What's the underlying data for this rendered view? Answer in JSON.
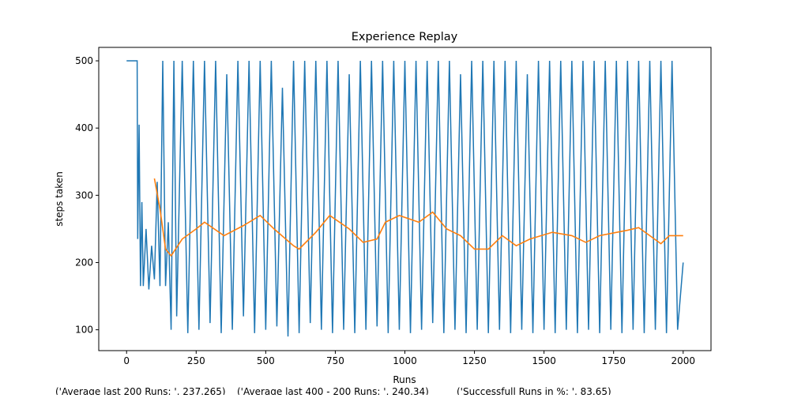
{
  "chart_data": {
    "type": "line",
    "title": "Experience Replay",
    "x_label": "Runs",
    "y_label": "steps taken",
    "xlim": [
      -100,
      2100
    ],
    "ylim": [
      69,
      520
    ],
    "xticks": [
      0,
      250,
      500,
      750,
      1000,
      1250,
      1500,
      1750,
      2000
    ],
    "yticks": [
      100,
      200,
      300,
      400,
      500
    ],
    "grid": false,
    "series": [
      {
        "color": "#1f77b4",
        "x": [
          0,
          38,
          40,
          45,
          50,
          55,
          60,
          70,
          80,
          90,
          100,
          110,
          120,
          130,
          140,
          150,
          160,
          170,
          180,
          200,
          220,
          240,
          260,
          280,
          300,
          320,
          340,
          360,
          380,
          400,
          420,
          440,
          460,
          480,
          500,
          520,
          540,
          560,
          580,
          600,
          620,
          640,
          660,
          680,
          700,
          720,
          740,
          760,
          780,
          800,
          820,
          840,
          860,
          880,
          900,
          920,
          940,
          960,
          980,
          1000,
          1020,
          1040,
          1060,
          1080,
          1100,
          1120,
          1140,
          1160,
          1180,
          1200,
          1220,
          1240,
          1260,
          1280,
          1300,
          1320,
          1340,
          1360,
          1380,
          1400,
          1420,
          1440,
          1460,
          1480,
          1500,
          1520,
          1540,
          1560,
          1580,
          1600,
          1620,
          1640,
          1660,
          1680,
          1700,
          1720,
          1740,
          1760,
          1780,
          1800,
          1820,
          1840,
          1860,
          1880,
          1900,
          1920,
          1940,
          1960,
          1980,
          2000
        ],
        "values": [
          500,
          500,
          235,
          405,
          165,
          290,
          165,
          250,
          160,
          225,
          175,
          320,
          165,
          500,
          165,
          260,
          100,
          500,
          120,
          500,
          95,
          500,
          100,
          500,
          110,
          500,
          95,
          480,
          100,
          500,
          120,
          500,
          95,
          500,
          100,
          500,
          105,
          460,
          90,
          500,
          95,
          500,
          110,
          500,
          100,
          500,
          95,
          500,
          100,
          480,
          95,
          500,
          100,
          500,
          105,
          500,
          95,
          500,
          100,
          500,
          95,
          500,
          100,
          500,
          110,
          500,
          95,
          500,
          100,
          480,
          95,
          500,
          100,
          500,
          95,
          500,
          100,
          500,
          95,
          500,
          100,
          480,
          95,
          500,
          100,
          500,
          95,
          500,
          100,
          500,
          95,
          500,
          100,
          500,
          95,
          500,
          100,
          500,
          95,
          500,
          100,
          500,
          95,
          500,
          100,
          500,
          95,
          500,
          100,
          200
        ]
      },
      {
        "color": "#ff7f0e",
        "x": [
          100,
          120,
          140,
          160,
          200,
          250,
          280,
          350,
          420,
          480,
          530,
          600,
          620,
          680,
          730,
          800,
          850,
          900,
          930,
          980,
          1050,
          1100,
          1150,
          1200,
          1250,
          1300,
          1350,
          1400,
          1450,
          1530,
          1600,
          1650,
          1700,
          1800,
          1840,
          1880,
          1920,
          1950,
          2000
        ],
        "values": [
          325,
          280,
          220,
          210,
          235,
          250,
          260,
          240,
          255,
          270,
          250,
          225,
          220,
          245,
          270,
          250,
          230,
          235,
          260,
          270,
          260,
          275,
          250,
          240,
          220,
          220,
          240,
          225,
          235,
          245,
          240,
          230,
          240,
          248,
          252,
          240,
          228,
          240,
          240
        ]
      }
    ]
  },
  "footer": [
    "('Average last 200 Runs: ', 237.265)",
    "('Average last 400 - 200 Runs: ', 240.34)",
    "('Successfull Runs in %: ', 83.65)"
  ]
}
